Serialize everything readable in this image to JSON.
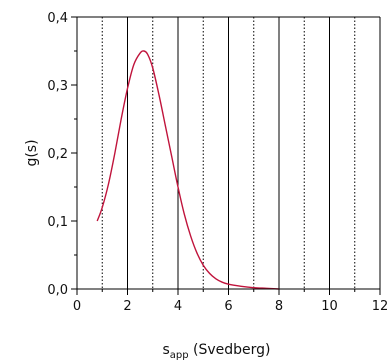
{
  "chart_data": {
    "type": "line",
    "xlabel": "s",
    "xlabel_subscript": "app",
    "xlabel_suffix": " (Svedberg)",
    "ylabel": "g(s)",
    "xlim": [
      0,
      12
    ],
    "ylim": [
      0.0,
      0.4
    ],
    "x_ticks": [
      0,
      2,
      4,
      6,
      8,
      10,
      12
    ],
    "x_tick_labels": [
      "0",
      "2",
      "4",
      "6",
      "8",
      "10",
      "12"
    ],
    "y_ticks": [
      0.0,
      0.1,
      0.2,
      0.3,
      0.4
    ],
    "y_tick_labels": [
      "0,0",
      "0,1",
      "0,2",
      "0,3",
      "0,4"
    ],
    "vertical_lines": [
      {
        "x": 1.0,
        "style": "dotted"
      },
      {
        "x": 2.0,
        "style": "solid"
      },
      {
        "x": 3.0,
        "style": "dotted"
      },
      {
        "x": 4.0,
        "style": "solid"
      },
      {
        "x": 5.0,
        "style": "dotted"
      },
      {
        "x": 6.0,
        "style": "solid"
      },
      {
        "x": 7.0,
        "style": "dotted"
      },
      {
        "x": 8.0,
        "style": "solid"
      },
      {
        "x": 9.0,
        "style": "dotted"
      },
      {
        "x": 10.0,
        "style": "solid"
      },
      {
        "x": 11.0,
        "style": "dotted"
      },
      {
        "x": 12.0,
        "style": "solid"
      }
    ],
    "grid": false,
    "series": [
      {
        "color": "#c0143c",
        "x": [
          0.8,
          1.0,
          1.25,
          1.5,
          1.75,
          2.0,
          2.25,
          2.5,
          2.65,
          2.8,
          3.0,
          3.25,
          3.5,
          3.75,
          4.0,
          4.25,
          4.5,
          4.75,
          5.0,
          5.25,
          5.5,
          5.75,
          6.0,
          6.5,
          7.0,
          7.5,
          8.0
        ],
        "y": [
          0.1,
          0.12,
          0.155,
          0.2,
          0.25,
          0.295,
          0.33,
          0.347,
          0.35,
          0.345,
          0.325,
          0.285,
          0.24,
          0.195,
          0.15,
          0.11,
          0.078,
          0.053,
          0.035,
          0.023,
          0.015,
          0.01,
          0.007,
          0.004,
          0.002,
          0.001,
          0.0
        ]
      }
    ]
  }
}
